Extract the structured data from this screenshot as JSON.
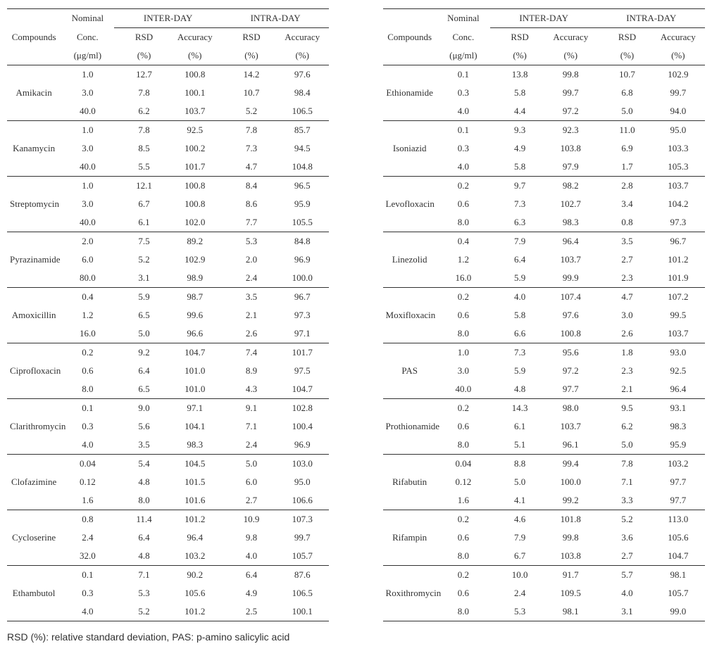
{
  "headers": {
    "compound": "Compounds",
    "nominal_l1": "Nominal",
    "nominal_l2": "Conc.",
    "nominal_l3": "(μg/ml)",
    "inter": "INTER-DAY",
    "intra": "INTRA-DAY",
    "rsd_l1": "RSD",
    "rsd_l2": "(%)",
    "acc_l1": "Accuracy",
    "acc_l2": "(%)"
  },
  "footnote": "RSD (%): relative standard deviation, PAS: p-amino salicylic acid",
  "groups": [
    {
      "left": {
        "name": "Amikacin",
        "rows": [
          {
            "conc": "1.0",
            "ir": "12.7",
            "ia": "100.8",
            "dr": "14.2",
            "da": "97.6"
          },
          {
            "conc": "3.0",
            "ir": "7.8",
            "ia": "100.1",
            "dr": "10.7",
            "da": "98.4"
          },
          {
            "conc": "40.0",
            "ir": "6.2",
            "ia": "103.7",
            "dr": "5.2",
            "da": "106.5"
          }
        ]
      },
      "right": {
        "name": "Ethionamide",
        "rows": [
          {
            "conc": "0.1",
            "ir": "13.8",
            "ia": "99.8",
            "dr": "10.7",
            "da": "102.9"
          },
          {
            "conc": "0.3",
            "ir": "5.8",
            "ia": "99.7",
            "dr": "6.8",
            "da": "99.7"
          },
          {
            "conc": "4.0",
            "ir": "4.4",
            "ia": "97.2",
            "dr": "5.0",
            "da": "94.0"
          }
        ]
      }
    },
    {
      "left": {
        "name": "Kanamycin",
        "rows": [
          {
            "conc": "1.0",
            "ir": "7.8",
            "ia": "92.5",
            "dr": "7.8",
            "da": "85.7"
          },
          {
            "conc": "3.0",
            "ir": "8.5",
            "ia": "100.2",
            "dr": "7.3",
            "da": "94.5"
          },
          {
            "conc": "40.0",
            "ir": "5.5",
            "ia": "101.7",
            "dr": "4.7",
            "da": "104.8"
          }
        ]
      },
      "right": {
        "name": "Isoniazid",
        "rows": [
          {
            "conc": "0.1",
            "ir": "9.3",
            "ia": "92.3",
            "dr": "11.0",
            "da": "95.0"
          },
          {
            "conc": "0.3",
            "ir": "4.9",
            "ia": "103.8",
            "dr": "6.9",
            "da": "103.3"
          },
          {
            "conc": "4.0",
            "ir": "5.8",
            "ia": "97.9",
            "dr": "1.7",
            "da": "105.3"
          }
        ]
      }
    },
    {
      "left": {
        "name": "Streptomycin",
        "rows": [
          {
            "conc": "1.0",
            "ir": "12.1",
            "ia": "100.8",
            "dr": "8.4",
            "da": "96.5"
          },
          {
            "conc": "3.0",
            "ir": "6.7",
            "ia": "100.8",
            "dr": "8.6",
            "da": "95.9"
          },
          {
            "conc": "40.0",
            "ir": "6.1",
            "ia": "102.0",
            "dr": "7.7",
            "da": "105.5"
          }
        ]
      },
      "right": {
        "name": "Levofloxacin",
        "rows": [
          {
            "conc": "0.2",
            "ir": "9.7",
            "ia": "98.2",
            "dr": "2.8",
            "da": "103.7"
          },
          {
            "conc": "0.6",
            "ir": "7.3",
            "ia": "102.7",
            "dr": "3.4",
            "da": "104.2"
          },
          {
            "conc": "8.0",
            "ir": "6.3",
            "ia": "98.3",
            "dr": "0.8",
            "da": "97.3"
          }
        ]
      }
    },
    {
      "left": {
        "name": "Pyrazinamide",
        "rows": [
          {
            "conc": "2.0",
            "ir": "7.5",
            "ia": "89.2",
            "dr": "5.3",
            "da": "84.8"
          },
          {
            "conc": "6.0",
            "ir": "5.2",
            "ia": "102.9",
            "dr": "2.0",
            "da": "96.9"
          },
          {
            "conc": "80.0",
            "ir": "3.1",
            "ia": "98.9",
            "dr": "2.4",
            "da": "100.0"
          }
        ]
      },
      "right": {
        "name": "Linezolid",
        "rows": [
          {
            "conc": "0.4",
            "ir": "7.9",
            "ia": "96.4",
            "dr": "3.5",
            "da": "96.7"
          },
          {
            "conc": "1.2",
            "ir": "6.4",
            "ia": "103.7",
            "dr": "2.7",
            "da": "101.2"
          },
          {
            "conc": "16.0",
            "ir": "5.9",
            "ia": "99.9",
            "dr": "2.3",
            "da": "101.9"
          }
        ]
      }
    },
    {
      "left": {
        "name": "Amoxicillin",
        "rows": [
          {
            "conc": "0.4",
            "ir": "5.9",
            "ia": "98.7",
            "dr": "3.5",
            "da": "96.7"
          },
          {
            "conc": "1.2",
            "ir": "6.5",
            "ia": "99.6",
            "dr": "2.1",
            "da": "97.3"
          },
          {
            "conc": "16.0",
            "ir": "5.0",
            "ia": "96.6",
            "dr": "2.6",
            "da": "97.1"
          }
        ]
      },
      "right": {
        "name": "Moxifloxacin",
        "rows": [
          {
            "conc": "0.2",
            "ir": "4.0",
            "ia": "107.4",
            "dr": "4.7",
            "da": "107.2"
          },
          {
            "conc": "0.6",
            "ir": "5.8",
            "ia": "97.6",
            "dr": "3.0",
            "da": "99.5"
          },
          {
            "conc": "8.0",
            "ir": "6.6",
            "ia": "100.8",
            "dr": "2.6",
            "da": "103.7"
          }
        ]
      }
    },
    {
      "left": {
        "name": "Ciprofloxacin",
        "rows": [
          {
            "conc": "0.2",
            "ir": "9.2",
            "ia": "104.7",
            "dr": "7.4",
            "da": "101.7"
          },
          {
            "conc": "0.6",
            "ir": "6.4",
            "ia": "101.0",
            "dr": "8.9",
            "da": "97.5"
          },
          {
            "conc": "8.0",
            "ir": "6.5",
            "ia": "101.0",
            "dr": "4.3",
            "da": "104.7"
          }
        ]
      },
      "right": {
        "name": "PAS",
        "rows": [
          {
            "conc": "1.0",
            "ir": "7.3",
            "ia": "95.6",
            "dr": "1.8",
            "da": "93.0"
          },
          {
            "conc": "3.0",
            "ir": "5.9",
            "ia": "97.2",
            "dr": "2.3",
            "da": "92.5"
          },
          {
            "conc": "40.0",
            "ir": "4.8",
            "ia": "97.7",
            "dr": "2.1",
            "da": "96.4"
          }
        ]
      }
    },
    {
      "left": {
        "name": "Clarithromycin",
        "rows": [
          {
            "conc": "0.1",
            "ir": "9.0",
            "ia": "97.1",
            "dr": "9.1",
            "da": "102.8"
          },
          {
            "conc": "0.3",
            "ir": "5.6",
            "ia": "104.1",
            "dr": "7.1",
            "da": "100.4"
          },
          {
            "conc": "4.0",
            "ir": "3.5",
            "ia": "98.3",
            "dr": "2.4",
            "da": "96.9"
          }
        ]
      },
      "right": {
        "name": "Prothionamide",
        "rows": [
          {
            "conc": "0.2",
            "ir": "14.3",
            "ia": "98.0",
            "dr": "9.5",
            "da": "93.1"
          },
          {
            "conc": "0.6",
            "ir": "6.1",
            "ia": "103.7",
            "dr": "6.2",
            "da": "98.3"
          },
          {
            "conc": "8.0",
            "ir": "5.1",
            "ia": "96.1",
            "dr": "5.0",
            "da": "95.9"
          }
        ]
      }
    },
    {
      "left": {
        "name": "Clofazimine",
        "rows": [
          {
            "conc": "0.04",
            "ir": "5.4",
            "ia": "104.5",
            "dr": "5.0",
            "da": "103.0"
          },
          {
            "conc": "0.12",
            "ir": "4.8",
            "ia": "101.5",
            "dr": "6.0",
            "da": "95.0"
          },
          {
            "conc": "1.6",
            "ir": "8.0",
            "ia": "101.6",
            "dr": "2.7",
            "da": "106.6"
          }
        ]
      },
      "right": {
        "name": "Rifabutin",
        "rows": [
          {
            "conc": "0.04",
            "ir": "8.8",
            "ia": "99.4",
            "dr": "7.8",
            "da": "103.2"
          },
          {
            "conc": "0.12",
            "ir": "5.0",
            "ia": "100.0",
            "dr": "7.1",
            "da": "97.7"
          },
          {
            "conc": "1.6",
            "ir": "4.1",
            "ia": "99.2",
            "dr": "3.3",
            "da": "97.7"
          }
        ]
      }
    },
    {
      "left": {
        "name": "Cycloserine",
        "rows": [
          {
            "conc": "0.8",
            "ir": "11.4",
            "ia": "101.2",
            "dr": "10.9",
            "da": "107.3"
          },
          {
            "conc": "2.4",
            "ir": "6.4",
            "ia": "96.4",
            "dr": "9.8",
            "da": "99.7"
          },
          {
            "conc": "32.0",
            "ir": "4.8",
            "ia": "103.2",
            "dr": "4.0",
            "da": "105.7"
          }
        ]
      },
      "right": {
        "name": "Rifampin",
        "rows": [
          {
            "conc": "0.2",
            "ir": "4.6",
            "ia": "101.8",
            "dr": "5.2",
            "da": "113.0"
          },
          {
            "conc": "0.6",
            "ir": "7.9",
            "ia": "99.8",
            "dr": "3.6",
            "da": "105.6"
          },
          {
            "conc": "8.0",
            "ir": "6.7",
            "ia": "103.8",
            "dr": "2.7",
            "da": "104.7"
          }
        ]
      }
    },
    {
      "left": {
        "name": "Ethambutol",
        "rows": [
          {
            "conc": "0.1",
            "ir": "7.1",
            "ia": "90.2",
            "dr": "6.4",
            "da": "87.6"
          },
          {
            "conc": "0.3",
            "ir": "5.3",
            "ia": "105.6",
            "dr": "4.9",
            "da": "106.5"
          },
          {
            "conc": "4.0",
            "ir": "5.2",
            "ia": "101.2",
            "dr": "2.5",
            "da": "100.1"
          }
        ]
      },
      "right": {
        "name": "Roxithromycin",
        "rows": [
          {
            "conc": "0.2",
            "ir": "10.0",
            "ia": "91.7",
            "dr": "5.7",
            "da": "98.1"
          },
          {
            "conc": "0.6",
            "ir": "2.4",
            "ia": "109.5",
            "dr": "4.0",
            "da": "105.7"
          },
          {
            "conc": "8.0",
            "ir": "5.3",
            "ia": "98.1",
            "dr": "3.1",
            "da": "99.0"
          }
        ]
      }
    }
  ],
  "style": {
    "font_family": "Times New Roman",
    "font_size_pt": 10,
    "text_color": "#323232",
    "rule_color": "#323232",
    "background": "#ffffff"
  }
}
